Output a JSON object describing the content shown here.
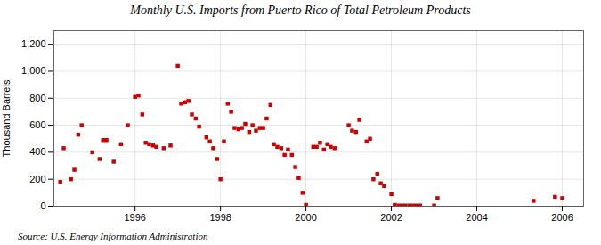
{
  "chart_data": {
    "type": "scatter",
    "title": "Monthly U.S. Imports from Puerto Rico of Total Petroleum Products",
    "ylabel": "Thousand Barrels",
    "annotation": "Source: U.S. Energy Information Administration",
    "color": "#cc0000",
    "marker": "square",
    "grid": true,
    "xlim": [
      1994.1,
      2006.5
    ],
    "ylim": [
      0,
      1300
    ],
    "xticks": [
      1996,
      1998,
      2000,
      2002,
      2004,
      2006
    ],
    "yticks": [
      0,
      200,
      400,
      600,
      800,
      {
        "value": 1000,
        "label": "1,000"
      },
      {
        "value": 1200,
        "label": "1,200"
      }
    ],
    "x": [
      1994.25,
      1994.33,
      1994.5,
      1994.58,
      1994.67,
      1994.75,
      1995.0,
      1995.17,
      1995.25,
      1995.33,
      1995.5,
      1995.67,
      1995.83,
      1996.0,
      1996.08,
      1996.17,
      1996.25,
      1996.33,
      1996.42,
      1996.5,
      1996.67,
      1996.83,
      1997.0,
      1997.08,
      1997.17,
      1997.25,
      1997.33,
      1997.42,
      1997.5,
      1997.67,
      1997.75,
      1997.83,
      1997.92,
      1998.0,
      1998.08,
      1998.17,
      1998.25,
      1998.33,
      1998.42,
      1998.5,
      1998.58,
      1998.67,
      1998.75,
      1998.83,
      1998.92,
      1999.0,
      1999.08,
      1999.17,
      1999.25,
      1999.33,
      1999.42,
      1999.5,
      1999.58,
      1999.67,
      1999.75,
      1999.83,
      1999.92,
      2000.0,
      2000.17,
      2000.25,
      2000.33,
      2000.42,
      2000.5,
      2000.58,
      2000.67,
      2001.0,
      2001.08,
      2001.17,
      2001.25,
      2001.42,
      2001.5,
      2001.58,
      2001.67,
      2001.75,
      2001.83,
      2002.0,
      2002.08,
      2002.17,
      2002.25,
      2002.33,
      2002.42,
      2002.5,
      2002.58,
      2002.67,
      2003.0,
      2003.08,
      2005.33,
      2005.83,
      2006.0
    ],
    "values": [
      180,
      430,
      200,
      270,
      530,
      600,
      400,
      350,
      490,
      490,
      330,
      460,
      600,
      810,
      820,
      680,
      470,
      460,
      450,
      440,
      430,
      450,
      1040,
      760,
      770,
      780,
      680,
      650,
      590,
      510,
      480,
      430,
      350,
      200,
      480,
      760,
      700,
      580,
      570,
      580,
      610,
      550,
      600,
      560,
      580,
      580,
      650,
      750,
      460,
      440,
      430,
      380,
      420,
      380,
      290,
      210,
      100,
      10,
      440,
      440,
      470,
      420,
      460,
      440,
      430,
      600,
      560,
      550,
      640,
      480,
      500,
      200,
      240,
      170,
      150,
      90,
      10,
      5,
      5,
      5,
      5,
      5,
      5,
      5,
      5,
      60,
      40,
      70,
      60
    ]
  }
}
